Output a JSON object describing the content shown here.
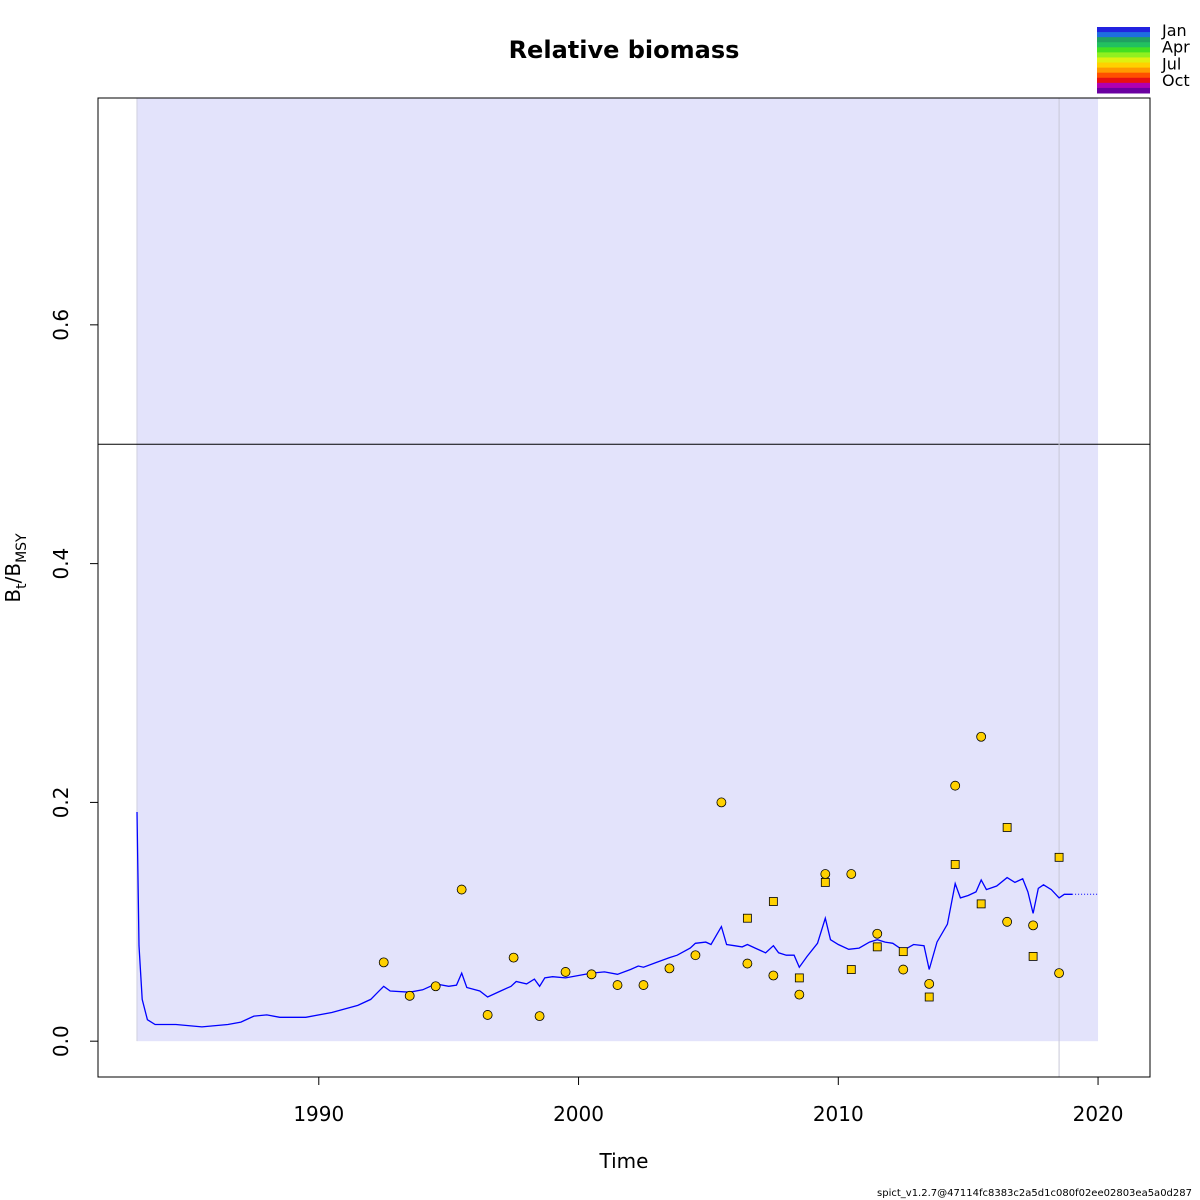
{
  "chart_data": {
    "type": "scatter",
    "title": "Relative biomass",
    "xlabel": "Time",
    "ylabel_main": "B",
    "ylabel_sub1": "t",
    "ylabel_mid": "/B",
    "ylabel_sub2": "MSY",
    "xlim": [
      1981.5,
      2022.0
    ],
    "ylim": [
      -0.03,
      0.79
    ],
    "x_ticks": [
      1990,
      2000,
      2010,
      2020
    ],
    "y_ticks": [
      0.0,
      0.2,
      0.4,
      0.6
    ],
    "x_tick_labels": [
      "1990",
      "2000",
      "2010",
      "2020"
    ],
    "y_tick_labels": [
      "0.0",
      "0.2",
      "0.4",
      "0.6"
    ],
    "reference_line_y": 0.5,
    "ci_band": {
      "x_start": 1983.0,
      "x_end": 2020.0,
      "y_low": 0.0,
      "y_high": 0.79,
      "color": "#e3e3fb"
    },
    "vline_x": 2018.5,
    "colors": {
      "points": "#ffd100",
      "line": "#0000ff",
      "band": "#e3e3fb"
    },
    "series": [
      {
        "marker": "circle",
        "points": [
          [
            1992.5,
            0.066
          ],
          [
            1993.5,
            0.038
          ],
          [
            1994.5,
            0.046
          ],
          [
            1995.5,
            0.127
          ],
          [
            1996.5,
            0.022
          ],
          [
            1997.5,
            0.07
          ],
          [
            1998.5,
            0.021
          ],
          [
            1999.5,
            0.058
          ],
          [
            2000.5,
            0.056
          ],
          [
            2001.5,
            0.047
          ],
          [
            2002.5,
            0.047
          ],
          [
            2003.5,
            0.061
          ],
          [
            2004.5,
            0.072
          ],
          [
            2005.5,
            0.2
          ],
          [
            2006.5,
            0.065
          ],
          [
            2007.5,
            0.055
          ],
          [
            2008.5,
            0.039
          ],
          [
            2009.5,
            0.14
          ],
          [
            2010.5,
            0.14
          ],
          [
            2011.5,
            0.09
          ],
          [
            2012.5,
            0.06
          ],
          [
            2013.5,
            0.048
          ],
          [
            2014.5,
            0.214
          ],
          [
            2015.5,
            0.255
          ],
          [
            2016.5,
            0.1
          ],
          [
            2017.5,
            0.097
          ],
          [
            2018.5,
            0.057
          ]
        ]
      },
      {
        "marker": "square",
        "points": [
          [
            2006.5,
            0.103
          ],
          [
            2007.5,
            0.117
          ],
          [
            2008.5,
            0.053
          ],
          [
            2009.5,
            0.133
          ],
          [
            2010.5,
            0.06
          ],
          [
            2011.5,
            0.079
          ],
          [
            2012.5,
            0.075
          ],
          [
            2013.5,
            0.037
          ],
          [
            2014.5,
            0.148
          ],
          [
            2015.5,
            0.115
          ],
          [
            2016.5,
            0.179
          ],
          [
            2017.5,
            0.071
          ],
          [
            2018.5,
            0.154
          ]
        ]
      },
      {
        "marker": "line",
        "points": [
          [
            1983.0,
            0.192
          ],
          [
            1983.08,
            0.08
          ],
          [
            1983.2,
            0.035
          ],
          [
            1983.4,
            0.018
          ],
          [
            1983.7,
            0.014
          ],
          [
            1984.5,
            0.014
          ],
          [
            1985.5,
            0.012
          ],
          [
            1986.5,
            0.014
          ],
          [
            1987.0,
            0.016
          ],
          [
            1987.5,
            0.021
          ],
          [
            1988.0,
            0.022
          ],
          [
            1988.5,
            0.02
          ],
          [
            1989.5,
            0.02
          ],
          [
            1990.5,
            0.024
          ],
          [
            1991.5,
            0.03
          ],
          [
            1992.0,
            0.035
          ],
          [
            1992.5,
            0.046
          ],
          [
            1992.75,
            0.042
          ],
          [
            1993.5,
            0.041
          ],
          [
            1994.0,
            0.043
          ],
          [
            1994.5,
            0.048
          ],
          [
            1995.0,
            0.046
          ],
          [
            1995.3,
            0.047
          ],
          [
            1995.5,
            0.057
          ],
          [
            1995.7,
            0.045
          ],
          [
            1996.2,
            0.042
          ],
          [
            1996.5,
            0.037
          ],
          [
            1997.0,
            0.042
          ],
          [
            1997.4,
            0.046
          ],
          [
            1997.6,
            0.05
          ],
          [
            1998.0,
            0.048
          ],
          [
            1998.3,
            0.052
          ],
          [
            1998.5,
            0.046
          ],
          [
            1998.7,
            0.053
          ],
          [
            1999.0,
            0.054
          ],
          [
            1999.5,
            0.053
          ],
          [
            2000.0,
            0.055
          ],
          [
            2000.5,
            0.057
          ],
          [
            2001.0,
            0.058
          ],
          [
            2001.5,
            0.056
          ],
          [
            2002.0,
            0.06
          ],
          [
            2002.3,
            0.063
          ],
          [
            2002.5,
            0.062
          ],
          [
            2003.0,
            0.066
          ],
          [
            2003.5,
            0.07
          ],
          [
            2003.8,
            0.072
          ],
          [
            2004.3,
            0.078
          ],
          [
            2004.5,
            0.082
          ],
          [
            2004.9,
            0.083
          ],
          [
            2005.1,
            0.081
          ],
          [
            2005.5,
            0.096
          ],
          [
            2005.7,
            0.081
          ],
          [
            2006.0,
            0.08
          ],
          [
            2006.3,
            0.079
          ],
          [
            2006.5,
            0.081
          ],
          [
            2006.8,
            0.078
          ],
          [
            2007.2,
            0.074
          ],
          [
            2007.5,
            0.08
          ],
          [
            2007.7,
            0.074
          ],
          [
            2008.0,
            0.072
          ],
          [
            2008.3,
            0.072
          ],
          [
            2008.5,
            0.062
          ],
          [
            2008.8,
            0.071
          ],
          [
            2009.2,
            0.082
          ],
          [
            2009.5,
            0.103
          ],
          [
            2009.7,
            0.085
          ],
          [
            2010.0,
            0.081
          ],
          [
            2010.4,
            0.077
          ],
          [
            2010.8,
            0.078
          ],
          [
            2011.2,
            0.083
          ],
          [
            2011.5,
            0.085
          ],
          [
            2011.8,
            0.083
          ],
          [
            2012.1,
            0.082
          ],
          [
            2012.5,
            0.076
          ],
          [
            2012.9,
            0.081
          ],
          [
            2013.3,
            0.08
          ],
          [
            2013.5,
            0.06
          ],
          [
            2013.8,
            0.083
          ],
          [
            2014.2,
            0.098
          ],
          [
            2014.5,
            0.132
          ],
          [
            2014.7,
            0.12
          ],
          [
            2015.0,
            0.122
          ],
          [
            2015.3,
            0.125
          ],
          [
            2015.5,
            0.135
          ],
          [
            2015.7,
            0.127
          ],
          [
            2016.1,
            0.13
          ],
          [
            2016.5,
            0.137
          ],
          [
            2016.8,
            0.133
          ],
          [
            2017.1,
            0.136
          ],
          [
            2017.3,
            0.125
          ],
          [
            2017.5,
            0.107
          ],
          [
            2017.7,
            0.128
          ],
          [
            2017.9,
            0.131
          ],
          [
            2018.2,
            0.127
          ],
          [
            2018.5,
            0.12
          ],
          [
            2018.7,
            0.123
          ],
          [
            2019.0,
            0.123
          ]
        ]
      },
      {
        "marker": "dotted-line",
        "points": [
          [
            2019.0,
            0.123
          ],
          [
            2020.0,
            0.123
          ]
        ]
      }
    ],
    "legend": {
      "entries": [
        "Jan",
        "Apr",
        "Jul",
        "Oct"
      ],
      "colors": [
        "#2222e0",
        "#1e6ee0",
        "#20a060",
        "#22c060",
        "#44e020",
        "#90f020",
        "#e0f010",
        "#ffd100",
        "#ff9a00",
        "#ff5000",
        "#e81010",
        "#b000b0",
        "#6a00a0"
      ]
    },
    "footer": "spict_v1.2.7@47114fc8383c2a5d1c080f02ee02803ea5a0d287"
  }
}
